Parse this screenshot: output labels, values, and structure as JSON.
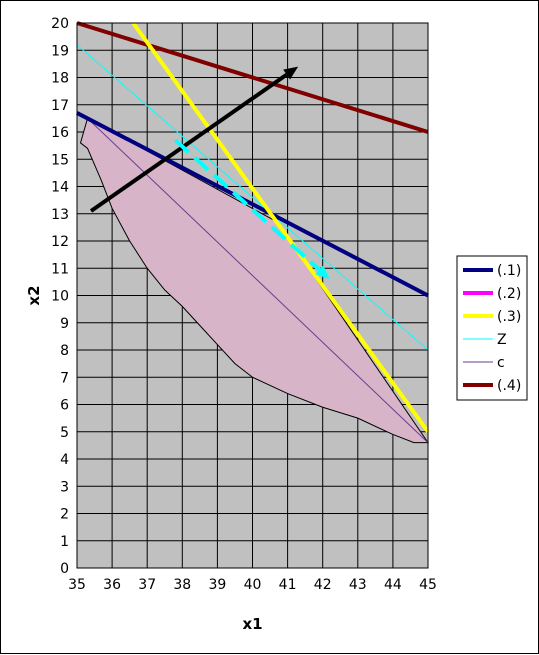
{
  "chart_data": {
    "type": "line",
    "xlabel": "x1",
    "ylabel": "x2",
    "xlim": [
      35,
      45
    ],
    "ylim": [
      0,
      20
    ],
    "x_ticks": [
      35,
      36,
      37,
      38,
      39,
      40,
      41,
      42,
      43,
      44,
      45
    ],
    "y_ticks": [
      0,
      1,
      2,
      3,
      4,
      5,
      6,
      7,
      8,
      9,
      10,
      11,
      12,
      13,
      14,
      15,
      16,
      17,
      18,
      19,
      20
    ],
    "grid": true,
    "plot_background": "#c0c0c0",
    "legend_position": "right",
    "feasible_region": {
      "color": "#d8b4c8",
      "points": [
        [
          35.1,
          15.6
        ],
        [
          35.3,
          16.5
        ],
        [
          40.7,
          12.7
        ],
        [
          45.0,
          4.6
        ],
        [
          44.6,
          4.6
        ],
        [
          44.0,
          4.9
        ],
        [
          43.0,
          5.5
        ],
        [
          42.0,
          5.9
        ],
        [
          41.0,
          6.4
        ],
        [
          40.0,
          7.0
        ],
        [
          39.5,
          7.5
        ],
        [
          39.0,
          8.2
        ],
        [
          38.5,
          8.9
        ],
        [
          38.0,
          9.6
        ],
        [
          37.5,
          10.2
        ],
        [
          37.0,
          11.0
        ],
        [
          36.5,
          12.0
        ],
        [
          36.0,
          13.2
        ],
        [
          35.7,
          14.2
        ],
        [
          35.5,
          14.8
        ],
        [
          35.3,
          15.4
        ],
        [
          35.1,
          15.6
        ]
      ]
    },
    "series": [
      {
        "name": "(.1)",
        "color": "#000080",
        "width": 4,
        "x": [
          35,
          45
        ],
        "y": [
          16.7,
          10.0
        ]
      },
      {
        "name": "(.2)",
        "color": "#ff00ff",
        "width": 4,
        "x": [],
        "y": []
      },
      {
        "name": "(.3)",
        "color": "#ffff00",
        "width": 4,
        "x": [
          36.6,
          45
        ],
        "y": [
          20.0,
          5.0
        ]
      },
      {
        "name": "Z",
        "color": "#00ffff",
        "width": 1,
        "x": [
          35,
          45
        ],
        "y": [
          19.2,
          8.0
        ]
      },
      {
        "name": "c",
        "color": "#6a3d8f",
        "width": 1,
        "x": [
          35.3,
          45
        ],
        "y": [
          16.5,
          4.6
        ]
      },
      {
        "name": "(.4)",
        "color": "#800000",
        "width": 4,
        "x": [
          35,
          45
        ],
        "y": [
          20.0,
          16.0
        ]
      }
    ],
    "arrows": [
      {
        "color": "#000000",
        "width": 4,
        "from": [
          35.4,
          13.1
        ],
        "to": [
          41.3,
          18.4
        ]
      },
      {
        "color": "#00ffff",
        "width": 4,
        "dashed": true,
        "from": [
          37.8,
          15.7
        ],
        "to": [
          42.2,
          10.6
        ]
      }
    ]
  }
}
